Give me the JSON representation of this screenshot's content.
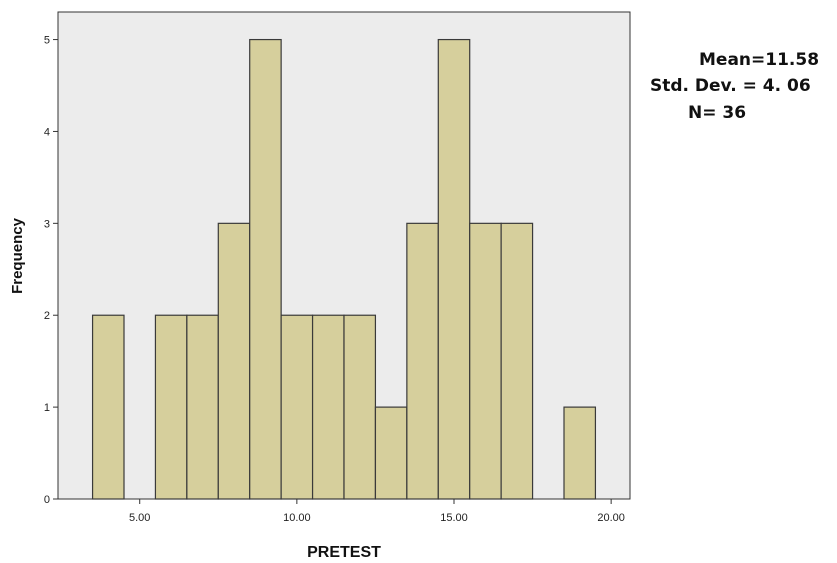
{
  "chart_data": {
    "type": "bar",
    "xlabel": "PRETEST",
    "ylabel": "Frequency",
    "x_ticks": [
      "5.00",
      "10.00",
      "15.00",
      "20.00"
    ],
    "x_tick_values": [
      5,
      10,
      15,
      20
    ],
    "xlim": [
      2.4,
      20.6
    ],
    "y_ticks": [
      "0",
      "1",
      "2",
      "3",
      "4",
      "5"
    ],
    "ylim": [
      0,
      5.3
    ],
    "bin_width": 1,
    "bins": [
      {
        "start": 3.5,
        "end": 4.5,
        "count": 2
      },
      {
        "start": 4.5,
        "end": 5.5,
        "count": 0
      },
      {
        "start": 5.5,
        "end": 6.5,
        "count": 2
      },
      {
        "start": 6.5,
        "end": 7.5,
        "count": 2
      },
      {
        "start": 7.5,
        "end": 8.5,
        "count": 3
      },
      {
        "start": 8.5,
        "end": 9.5,
        "count": 5
      },
      {
        "start": 9.5,
        "end": 10.5,
        "count": 2
      },
      {
        "start": 10.5,
        "end": 11.5,
        "count": 2
      },
      {
        "start": 11.5,
        "end": 12.5,
        "count": 2
      },
      {
        "start": 12.5,
        "end": 13.5,
        "count": 1
      },
      {
        "start": 13.5,
        "end": 14.5,
        "count": 3
      },
      {
        "start": 14.5,
        "end": 15.5,
        "count": 5
      },
      {
        "start": 15.5,
        "end": 16.5,
        "count": 3
      },
      {
        "start": 16.5,
        "end": 17.5,
        "count": 3
      },
      {
        "start": 17.5,
        "end": 18.5,
        "count": 0
      },
      {
        "start": 18.5,
        "end": 19.5,
        "count": 1
      }
    ],
    "grid": false,
    "colors": {
      "bar_fill": "#d6cf9c",
      "bar_stroke": "#3a3a3a",
      "plot_bg": "#ececec"
    }
  },
  "stats": {
    "mean": "Mean=11.58",
    "sd": "Std. Dev. = 4. 06",
    "n": "N= 36"
  }
}
